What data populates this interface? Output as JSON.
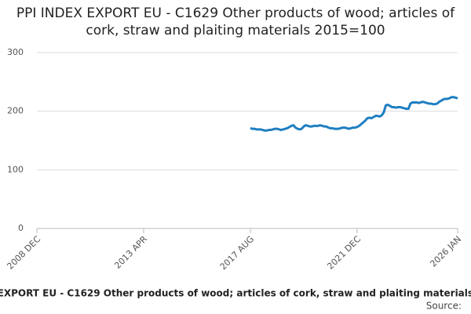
{
  "chart_data": {
    "type": "line",
    "title": "PPI INDEX EXPORT EU - C1629 Other products of wood; articles of cork, straw and plaiting materials 2015=100",
    "source": "Source:",
    "x": [
      "2017-08",
      "2017-09",
      "2017-10",
      "2017-11",
      "2017-12",
      "2018-01",
      "2018-02",
      "2018-03",
      "2018-04",
      "2018-05",
      "2018-06",
      "2018-07",
      "2018-08",
      "2018-09",
      "2018-10",
      "2018-11",
      "2018-12",
      "2019-01",
      "2019-02",
      "2019-03",
      "2019-04",
      "2019-05",
      "2019-06",
      "2019-07",
      "2019-08",
      "2019-09",
      "2019-10",
      "2019-11",
      "2019-12",
      "2020-01",
      "2020-02",
      "2020-03",
      "2020-04",
      "2020-05",
      "2020-06",
      "2020-07",
      "2020-08",
      "2020-09",
      "2020-10",
      "2020-11",
      "2020-12",
      "2021-01",
      "2021-02",
      "2021-03",
      "2021-04",
      "2021-05",
      "2021-06",
      "2021-07",
      "2021-08",
      "2021-09",
      "2021-10",
      "2021-11",
      "2021-12",
      "2022-01",
      "2022-02",
      "2022-03",
      "2022-04",
      "2022-05",
      "2022-06",
      "2022-07",
      "2022-08",
      "2022-09",
      "2022-10",
      "2022-11",
      "2022-12",
      "2023-01",
      "2023-02",
      "2023-03",
      "2023-04",
      "2023-05",
      "2023-06",
      "2023-07",
      "2023-08",
      "2023-09",
      "2023-10",
      "2023-11",
      "2023-12",
      "2024-01",
      "2024-02",
      "2024-03",
      "2024-04",
      "2024-05",
      "2024-06",
      "2024-07",
      "2024-08",
      "2024-09",
      "2024-10",
      "2024-11",
      "2024-12",
      "2025-01",
      "2025-02",
      "2025-03",
      "2025-04",
      "2025-05",
      "2025-06",
      "2025-07",
      "2025-08",
      "2025-09",
      "2025-10",
      "2025-11",
      "2025-12",
      "2026-01"
    ],
    "series": [
      {
        "name": "PPI INDEX EXPORT EU - C1629 Other products of wood; articles of cork, straw and plaiting materials 2015=100",
        "color": "#1f7fc1",
        "values": [
          171,
          170,
          170,
          169,
          169,
          169,
          168,
          167,
          167,
          168,
          168,
          169,
          170,
          170,
          169,
          168,
          169,
          170,
          171,
          173,
          175,
          176,
          172,
          170,
          169,
          170,
          174,
          176,
          175,
          174,
          174,
          175,
          175,
          175,
          176,
          175,
          174,
          174,
          172,
          171,
          171,
          170,
          170,
          170,
          171,
          172,
          172,
          171,
          170,
          171,
          172,
          172,
          173,
          175,
          178,
          181,
          184,
          188,
          189,
          188,
          190,
          192,
          192,
          191,
          193,
          198,
          210,
          211,
          209,
          207,
          207,
          206,
          207,
          207,
          206,
          205,
          204,
          204,
          213,
          215,
          215,
          215,
          214,
          215,
          216,
          215,
          214,
          213,
          213,
          212,
          212,
          213,
          216,
          218,
          220,
          221,
          221,
          222,
          224,
          224,
          223,
          222
        ]
      }
    ],
    "xlim": [
      "2008-12",
      "2026-01"
    ],
    "xticks": [
      {
        "value": "2008-12",
        "label": "2008 DEC"
      },
      {
        "value": "2013-04",
        "label": "2013 APR"
      },
      {
        "value": "2017-08",
        "label": "2017 AUG"
      },
      {
        "value": "2021-12",
        "label": "2021 DEC"
      },
      {
        "value": "2026-01",
        "label": "2026 JAN"
      }
    ],
    "ylim": [
      0,
      300
    ],
    "yticks": [
      0,
      100,
      200,
      300
    ],
    "grid": true
  }
}
